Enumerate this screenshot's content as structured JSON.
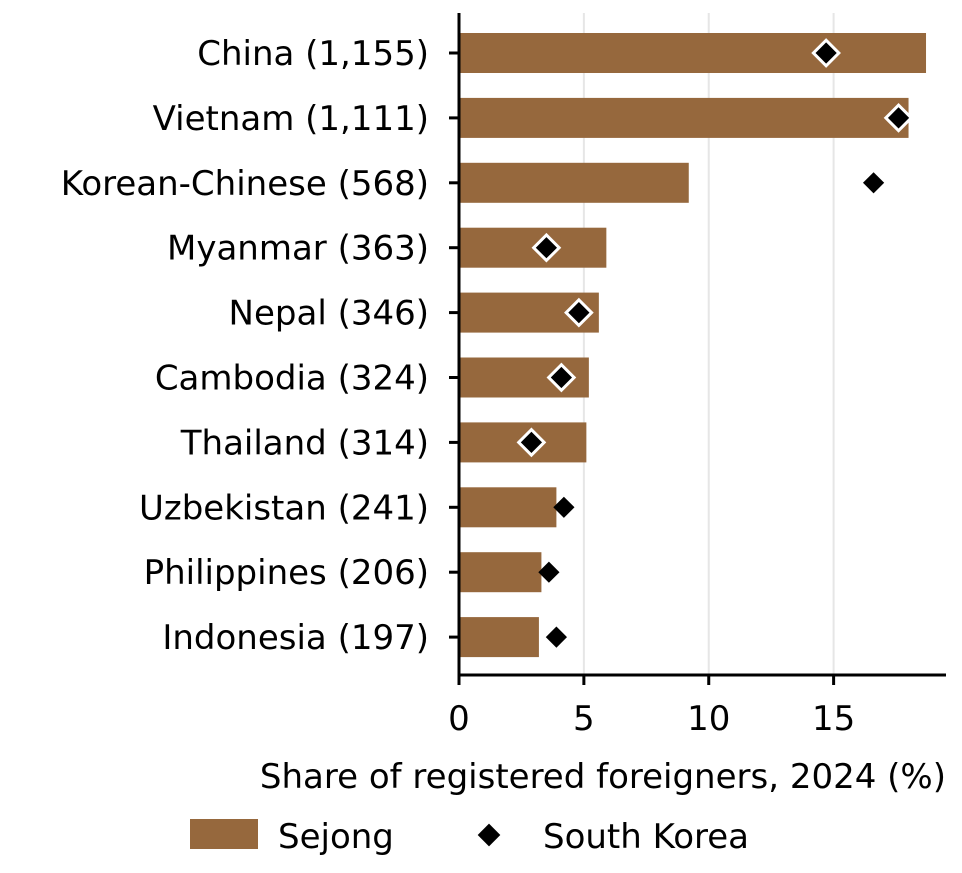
{
  "chart_data": {
    "type": "bar",
    "orientation": "horizontal",
    "categories": [
      "China (1,155)",
      "Vietnam (1,111)",
      "Korean-Chinese (568)",
      "Myanmar (363)",
      "Nepal (346)",
      "Cambodia (324)",
      "Thailand (314)",
      "Uzbekistan (241)",
      "Philippines (206)",
      "Indonesia (197)"
    ],
    "series": [
      {
        "name": "Sejong",
        "mark": "bar",
        "color": "#96683d",
        "values": [
          18.7,
          18.0,
          9.2,
          5.9,
          5.6,
          5.2,
          5.1,
          3.9,
          3.3,
          3.2
        ]
      },
      {
        "name": "South Korea",
        "mark": "diamond",
        "color": "#000000",
        "values": [
          14.7,
          17.6,
          16.6,
          3.5,
          4.8,
          4.1,
          2.9,
          4.2,
          3.6,
          3.9
        ]
      }
    ],
    "xlabel": "Share of registered foreigners, 2024 (%)",
    "ylabel": "",
    "xlim": [
      0,
      19.5
    ],
    "xticks": [
      "0",
      "5",
      "10",
      "15"
    ],
    "xtick_values": [
      0,
      5,
      10,
      15
    ],
    "grid": "vertical",
    "legend_position": "bottom"
  }
}
